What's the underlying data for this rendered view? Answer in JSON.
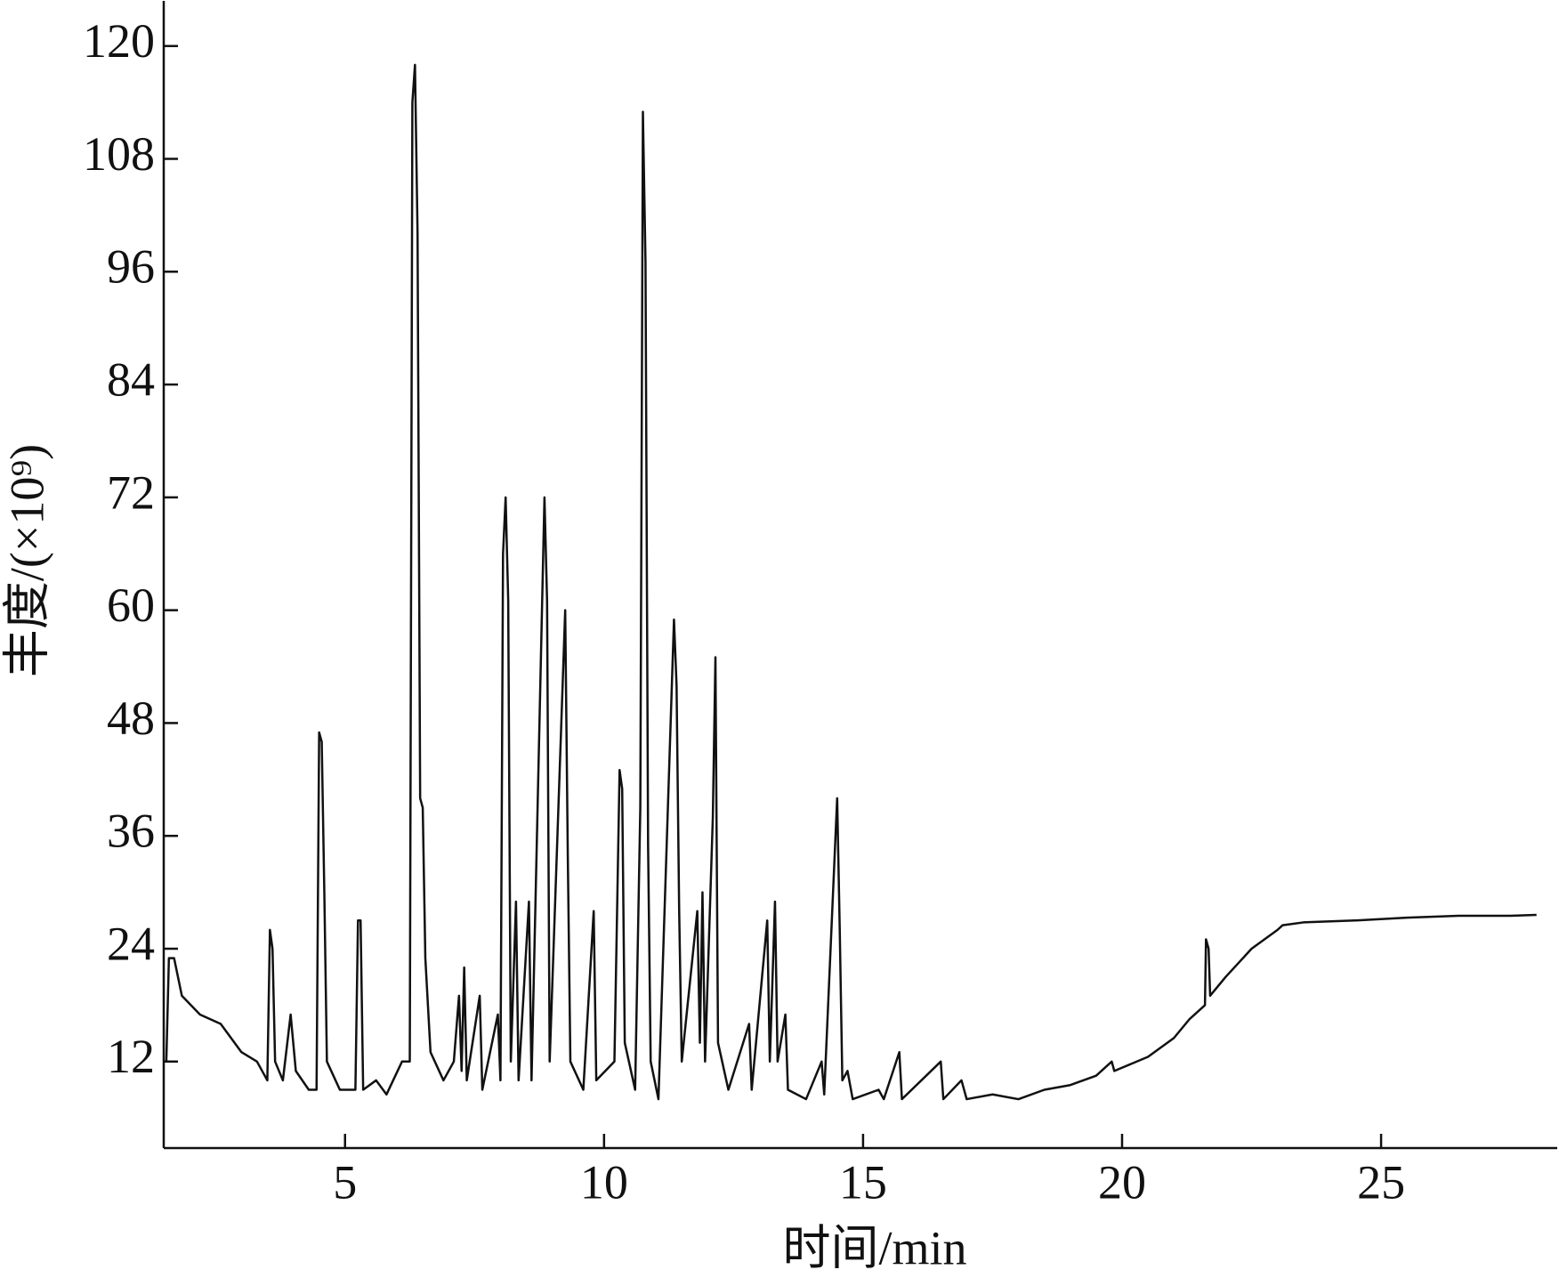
{
  "chart_data": {
    "type": "line",
    "x_label": "时间/min",
    "y_label": "丰度/(×10⁹)",
    "color": "#111111",
    "xlim": [
      1.5,
      28.4
    ],
    "ylim": [
      2.8,
      124.8
    ],
    "xticks": [
      5,
      10,
      15,
      20,
      25
    ],
    "yticks": [
      12,
      24,
      36,
      48,
      60,
      72,
      84,
      96,
      108,
      120
    ],
    "x": [
      1.55,
      1.6,
      1.7,
      1.85,
      2.2,
      2.6,
      3.0,
      3.3,
      3.5,
      3.55,
      3.6,
      3.65,
      3.8,
      3.95,
      4.05,
      4.3,
      4.45,
      4.5,
      4.55,
      4.6,
      4.65,
      4.9,
      5.2,
      5.25,
      5.3,
      5.35,
      5.6,
      5.8,
      6.1,
      6.25,
      6.3,
      6.35,
      6.4,
      6.45,
      6.5,
      6.55,
      6.65,
      6.9,
      7.1,
      7.2,
      7.25,
      7.3,
      7.35,
      7.6,
      7.65,
      7.95,
      8.0,
      8.05,
      8.1,
      8.15,
      8.2,
      8.3,
      8.35,
      8.55,
      8.6,
      8.85,
      8.9,
      8.95,
      9.25,
      9.3,
      9.35,
      9.6,
      9.8,
      9.85,
      10.2,
      10.3,
      10.35,
      10.4,
      10.6,
      10.7,
      10.75,
      10.8,
      10.85,
      10.9,
      11.05,
      11.35,
      11.4,
      11.45,
      11.5,
      11.8,
      11.85,
      11.9,
      11.95,
      12.1,
      12.15,
      12.2,
      12.4,
      12.8,
      12.85,
      13.15,
      13.2,
      13.3,
      13.35,
      13.5,
      13.55,
      13.9,
      14.2,
      14.25,
      14.5,
      14.55,
      14.6,
      14.7,
      14.8,
      15.3,
      15.4,
      15.7,
      15.75,
      16.5,
      16.55,
      16.9,
      17.0,
      17.5,
      18.0,
      18.5,
      19.0,
      19.5,
      19.8,
      19.85,
      20.5,
      21.0,
      21.3,
      21.6,
      21.62,
      21.67,
      21.7,
      22.0,
      22.5,
      23.0,
      23.1,
      23.5,
      24.5,
      25.5,
      26.5,
      27.5,
      28.0
    ],
    "values": [
      12,
      23,
      23,
      19,
      17,
      16,
      13,
      12,
      10,
      26,
      24,
      12,
      10,
      17,
      11,
      9,
      9,
      47,
      46,
      30,
      12,
      9,
      9,
      27,
      27,
      9,
      10,
      8.5,
      12,
      12,
      114,
      118,
      100,
      40,
      39,
      23,
      13,
      10,
      12,
      19,
      11,
      22,
      10,
      19,
      9,
      17,
      10,
      66,
      72,
      61,
      12,
      29,
      10,
      29,
      10,
      72,
      61,
      12,
      60,
      34,
      12,
      9,
      28,
      10,
      12,
      43,
      41,
      14,
      9,
      39,
      113,
      97,
      35,
      12,
      8,
      59,
      52,
      28,
      12,
      28,
      14,
      30,
      12,
      38,
      55,
      14,
      9,
      16,
      9,
      27,
      12,
      29,
      12,
      17,
      9,
      8,
      12,
      8.5,
      40,
      26,
      10,
      11,
      8,
      9,
      8,
      13,
      8,
      12,
      8,
      10,
      8,
      8.5,
      8,
      9,
      9.5,
      10.5,
      12,
      11,
      12.5,
      14.5,
      16.5,
      18,
      25,
      24,
      19,
      21,
      24,
      26,
      26.5,
      26.8,
      27,
      27.3,
      27.5,
      27.5,
      27.6
    ]
  }
}
